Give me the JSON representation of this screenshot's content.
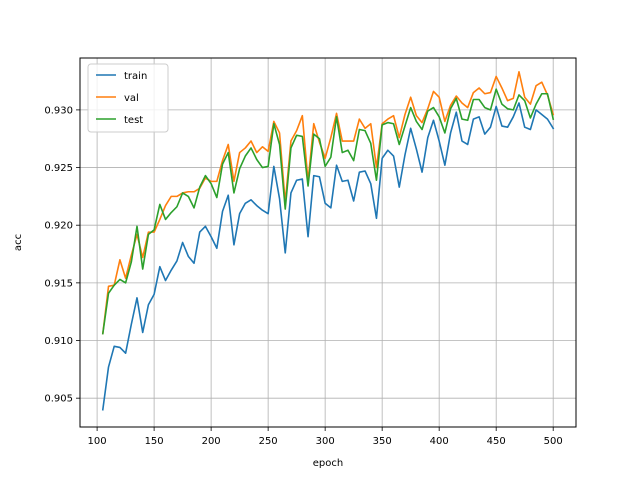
{
  "chart_data": {
    "type": "line",
    "xlabel": "epoch",
    "ylabel": "acc",
    "xlim": [
      85,
      520
    ],
    "ylim": [
      0.9025,
      0.9345
    ],
    "xticks": [
      100,
      150,
      200,
      250,
      300,
      350,
      400,
      450,
      500
    ],
    "yticks": [
      0.905,
      0.91,
      0.915,
      0.92,
      0.925,
      0.93
    ],
    "ytick_labels": [
      "0.905",
      "0.910",
      "0.915",
      "0.920",
      "0.925",
      "0.930"
    ],
    "grid": true,
    "legend": "top-left",
    "x": [
      105,
      110,
      115,
      120,
      125,
      130,
      135,
      140,
      145,
      150,
      155,
      160,
      165,
      170,
      175,
      180,
      185,
      190,
      195,
      200,
      205,
      210,
      215,
      220,
      225,
      230,
      235,
      240,
      245,
      250,
      255,
      260,
      265,
      270,
      275,
      280,
      285,
      290,
      295,
      300,
      305,
      310,
      315,
      320,
      325,
      330,
      335,
      340,
      345,
      350,
      355,
      360,
      365,
      370,
      375,
      380,
      385,
      390,
      395,
      400,
      405,
      410,
      415,
      420,
      425,
      430,
      435,
      440,
      445,
      450,
      455,
      460,
      465,
      470,
      475,
      480,
      485,
      490,
      495,
      500
    ],
    "series": [
      {
        "name": "train",
        "color": "#1f77b4",
        "values": [
          0.904,
          0.9077,
          0.9095,
          0.9094,
          0.9089,
          0.9114,
          0.9137,
          0.9107,
          0.9131,
          0.914,
          0.9164,
          0.9152,
          0.9161,
          0.9169,
          0.9185,
          0.9173,
          0.9167,
          0.9194,
          0.9199,
          0.919,
          0.918,
          0.9212,
          0.9226,
          0.9183,
          0.921,
          0.9219,
          0.9222,
          0.9217,
          0.9213,
          0.921,
          0.9251,
          0.9223,
          0.9176,
          0.9228,
          0.9239,
          0.924,
          0.919,
          0.9243,
          0.9242,
          0.9219,
          0.9215,
          0.9252,
          0.9238,
          0.9239,
          0.9221,
          0.9246,
          0.9247,
          0.9236,
          0.9206,
          0.9258,
          0.9265,
          0.926,
          0.9233,
          0.9261,
          0.9284,
          0.9266,
          0.9246,
          0.9276,
          0.9291,
          0.9273,
          0.9252,
          0.928,
          0.9298,
          0.9273,
          0.927,
          0.9292,
          0.9294,
          0.9279,
          0.9285,
          0.9303,
          0.9286,
          0.9285,
          0.9294,
          0.9306,
          0.9285,
          0.9283,
          0.93,
          0.9296,
          0.9292,
          0.9284
        ]
      },
      {
        "name": "val",
        "color": "#ff7f0e",
        "values": [
          0.9106,
          0.9147,
          0.9148,
          0.917,
          0.9154,
          0.9174,
          0.9192,
          0.9172,
          0.9194,
          0.9194,
          0.9205,
          0.9217,
          0.9225,
          0.9225,
          0.9228,
          0.9229,
          0.9229,
          0.9232,
          0.9241,
          0.9238,
          0.9238,
          0.9256,
          0.927,
          0.9238,
          0.9263,
          0.9267,
          0.9273,
          0.9263,
          0.9268,
          0.9264,
          0.929,
          0.928,
          0.922,
          0.9273,
          0.9282,
          0.9295,
          0.9238,
          0.9288,
          0.9272,
          0.9258,
          0.9276,
          0.9297,
          0.9273,
          0.9273,
          0.9273,
          0.9292,
          0.9284,
          0.9288,
          0.925,
          0.9288,
          0.9292,
          0.9295,
          0.9276,
          0.9296,
          0.9311,
          0.9295,
          0.9289,
          0.9301,
          0.9316,
          0.9311,
          0.929,
          0.9304,
          0.9312,
          0.9306,
          0.9302,
          0.9315,
          0.9319,
          0.9314,
          0.9315,
          0.9329,
          0.9319,
          0.9308,
          0.931,
          0.9333,
          0.9311,
          0.9305,
          0.9321,
          0.9324,
          0.9313,
          0.9296
        ]
      },
      {
        "name": "test",
        "color": "#2ca02c",
        "values": [
          0.9106,
          0.9141,
          0.9148,
          0.9153,
          0.915,
          0.9168,
          0.9199,
          0.9162,
          0.9192,
          0.9196,
          0.9218,
          0.9205,
          0.9211,
          0.9216,
          0.9228,
          0.9225,
          0.9215,
          0.9233,
          0.9243,
          0.9236,
          0.9224,
          0.9253,
          0.9263,
          0.9228,
          0.9249,
          0.926,
          0.9267,
          0.9257,
          0.925,
          0.9251,
          0.9288,
          0.927,
          0.9214,
          0.9267,
          0.9278,
          0.9277,
          0.9234,
          0.9279,
          0.9275,
          0.9251,
          0.9259,
          0.9294,
          0.9263,
          0.9265,
          0.9256,
          0.9283,
          0.9282,
          0.9271,
          0.9239,
          0.9287,
          0.9289,
          0.9288,
          0.927,
          0.9286,
          0.9302,
          0.929,
          0.9283,
          0.9299,
          0.9302,
          0.9294,
          0.928,
          0.9301,
          0.931,
          0.9292,
          0.9291,
          0.9309,
          0.9309,
          0.9302,
          0.93,
          0.9318,
          0.9305,
          0.9301,
          0.93,
          0.9313,
          0.9308,
          0.9293,
          0.9305,
          0.9314,
          0.9314,
          0.9292
        ]
      }
    ]
  }
}
